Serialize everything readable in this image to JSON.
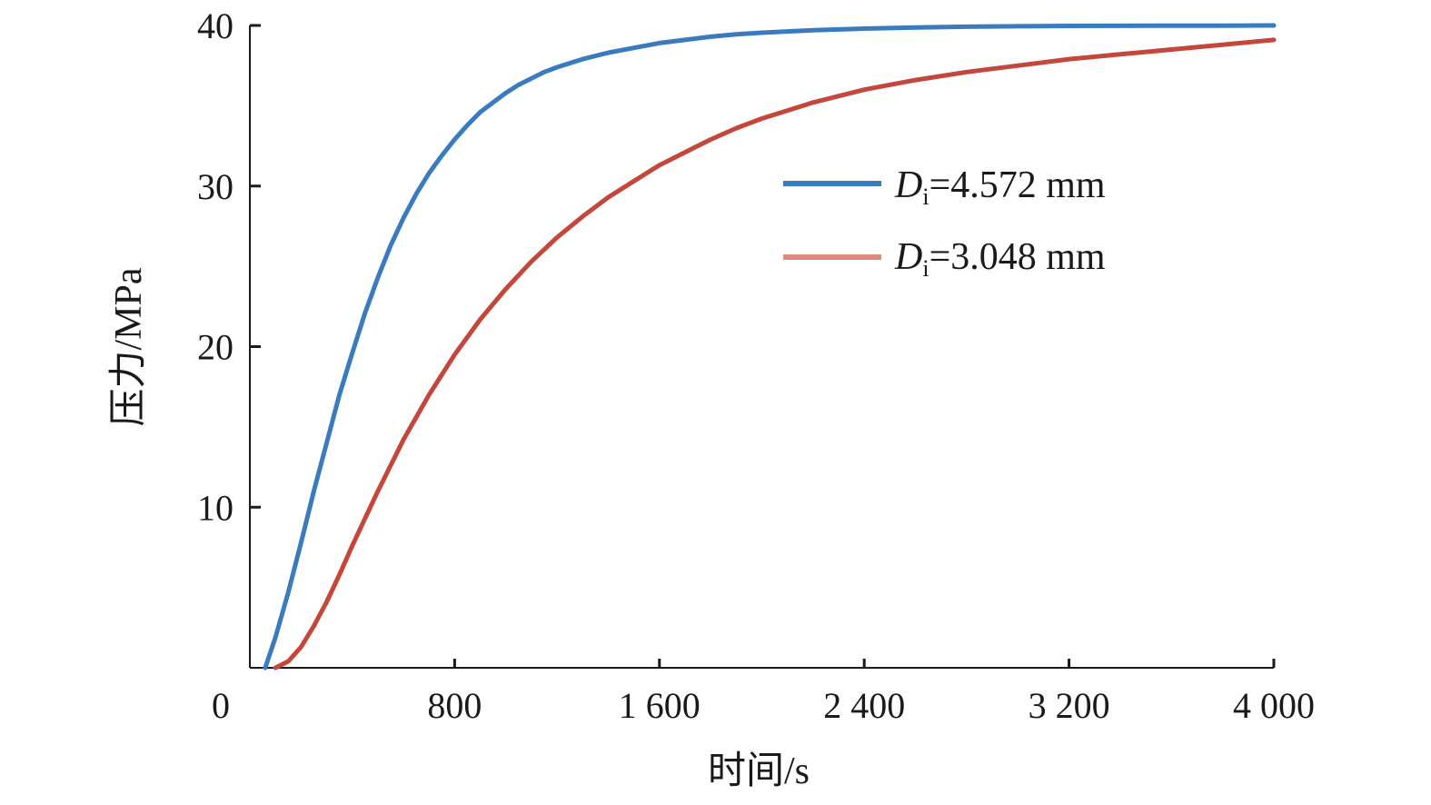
{
  "chart_data": {
    "type": "line",
    "title": "",
    "xlabel": "时间/s",
    "ylabel": "压力/MPa",
    "xlim": [
      0,
      4000
    ],
    "ylim": [
      0,
      40
    ],
    "x_ticks": [
      0,
      800,
      1600,
      2400,
      3200,
      4000
    ],
    "x_tick_labels": [
      "0",
      "800",
      "1 600",
      "2 400",
      "3 200",
      "4 000"
    ],
    "y_ticks": [
      10,
      20,
      30,
      40
    ],
    "y_tick_labels": [
      "10",
      "20",
      "30",
      "40"
    ],
    "grid": false,
    "legend_position": "right",
    "series": [
      {
        "name": "Di=4.572 mm",
        "legend_symbol": "D",
        "legend_subscript": "i",
        "legend_value": "=4.572 mm",
        "color": "#3a7bbf",
        "x": [
          60,
          100,
          150,
          200,
          250,
          300,
          350,
          400,
          450,
          500,
          550,
          600,
          650,
          700,
          750,
          800,
          850,
          900,
          950,
          1000,
          1050,
          1100,
          1150,
          1200,
          1300,
          1400,
          1500,
          1600,
          1700,
          1800,
          1900,
          2000,
          2200,
          2400,
          2600,
          2800,
          3000,
          3200,
          3400,
          3600,
          3800,
          4000
        ],
        "y": [
          0.0,
          1.9,
          4.7,
          7.8,
          11.0,
          14.0,
          17.0,
          19.6,
          22.1,
          24.3,
          26.3,
          28.0,
          29.5,
          30.8,
          31.9,
          32.9,
          33.8,
          34.6,
          35.2,
          35.8,
          36.3,
          36.7,
          37.1,
          37.4,
          37.9,
          38.3,
          38.6,
          38.9,
          39.1,
          39.3,
          39.45,
          39.55,
          39.7,
          39.8,
          39.87,
          39.92,
          39.95,
          39.97,
          39.98,
          39.99,
          39.99,
          40.0
        ]
      },
      {
        "name": "Di=3.048 mm",
        "legend_symbol": "D",
        "legend_subscript": "i",
        "legend_value": "=3.048 mm",
        "color": "#c5463a",
        "legend_color": "#e08a7e",
        "x": [
          100,
          150,
          200,
          250,
          300,
          350,
          400,
          450,
          500,
          600,
          700,
          800,
          900,
          1000,
          1100,
          1200,
          1300,
          1400,
          1500,
          1600,
          1700,
          1800,
          1900,
          2000,
          2200,
          2400,
          2600,
          2800,
          3000,
          3200,
          3400,
          3600,
          3800,
          4000
        ],
        "y": [
          0.0,
          0.4,
          1.3,
          2.6,
          4.1,
          5.8,
          7.6,
          9.3,
          11.0,
          14.2,
          17.0,
          19.5,
          21.7,
          23.6,
          25.3,
          26.8,
          28.1,
          29.3,
          30.3,
          31.3,
          32.1,
          32.9,
          33.6,
          34.2,
          35.2,
          36.0,
          36.6,
          37.1,
          37.5,
          37.9,
          38.2,
          38.5,
          38.8,
          39.1
        ]
      }
    ]
  }
}
